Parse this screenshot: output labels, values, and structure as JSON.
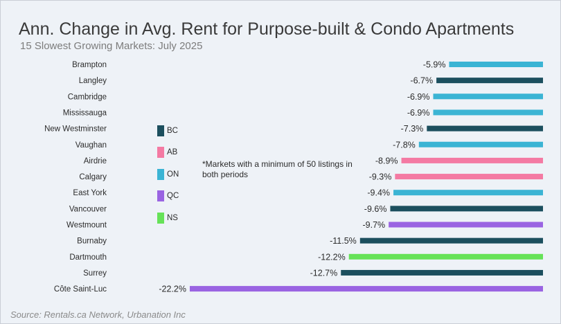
{
  "title": "Ann. Change in Avg. Rent for Purpose-built & Condo Apartments",
  "subtitle": "15 Slowest Growing Markets: July 2025",
  "source": "Source: Rentals.ca Network, Urbanation Inc",
  "note": "*Markets with a minimum of 50 listings in both periods",
  "legend": [
    {
      "label": "BC",
      "color": "#1c4f5e"
    },
    {
      "label": "AB",
      "color": "#f47aa3"
    },
    {
      "label": "ON",
      "color": "#3bb4d4"
    },
    {
      "label": "QC",
      "color": "#9a64e2"
    },
    {
      "label": "NS",
      "color": "#66e258"
    }
  ],
  "chart_data": {
    "type": "bar",
    "orientation": "horizontal",
    "title": "Ann. Change in Avg. Rent for Purpose-built & Condo Apartments",
    "subtitle": "15 Slowest Growing Markets: July 2025",
    "categories": [
      "Brampton",
      "Langley",
      "Cambridge",
      "Mississauga",
      "New Westminster",
      "Vaughan",
      "Airdrie",
      "Calgary",
      "East York",
      "Vancouver",
      "Westmount",
      "Burnaby",
      "Dartmouth",
      "Surrey",
      "Côte Saint-Luc"
    ],
    "values": [
      -5.9,
      -6.7,
      -6.9,
      -6.9,
      -7.3,
      -7.8,
      -8.9,
      -9.3,
      -9.4,
      -9.6,
      -9.7,
      -11.5,
      -12.2,
      -12.7,
      -22.2
    ],
    "value_labels": [
      "-5.9%",
      "-6.7%",
      "-6.9%",
      "-6.9%",
      "-7.3%",
      "-7.8%",
      "-8.9%",
      "-9.3%",
      "-9.4%",
      "-9.6%",
      "-9.7%",
      "-11.5%",
      "-12.2%",
      "-12.7%",
      "-22.2%"
    ],
    "provinces": [
      "ON",
      "BC",
      "ON",
      "ON",
      "BC",
      "ON",
      "AB",
      "AB",
      "ON",
      "BC",
      "QC",
      "BC",
      "NS",
      "BC",
      "QC"
    ],
    "province_colors": {
      "BC": "#1c4f5e",
      "AB": "#f47aa3",
      "ON": "#3bb4d4",
      "QC": "#9a64e2",
      "NS": "#66e258"
    },
    "xlim": [
      -22.2,
      0
    ],
    "grid": false,
    "legend_position": "left-center"
  }
}
